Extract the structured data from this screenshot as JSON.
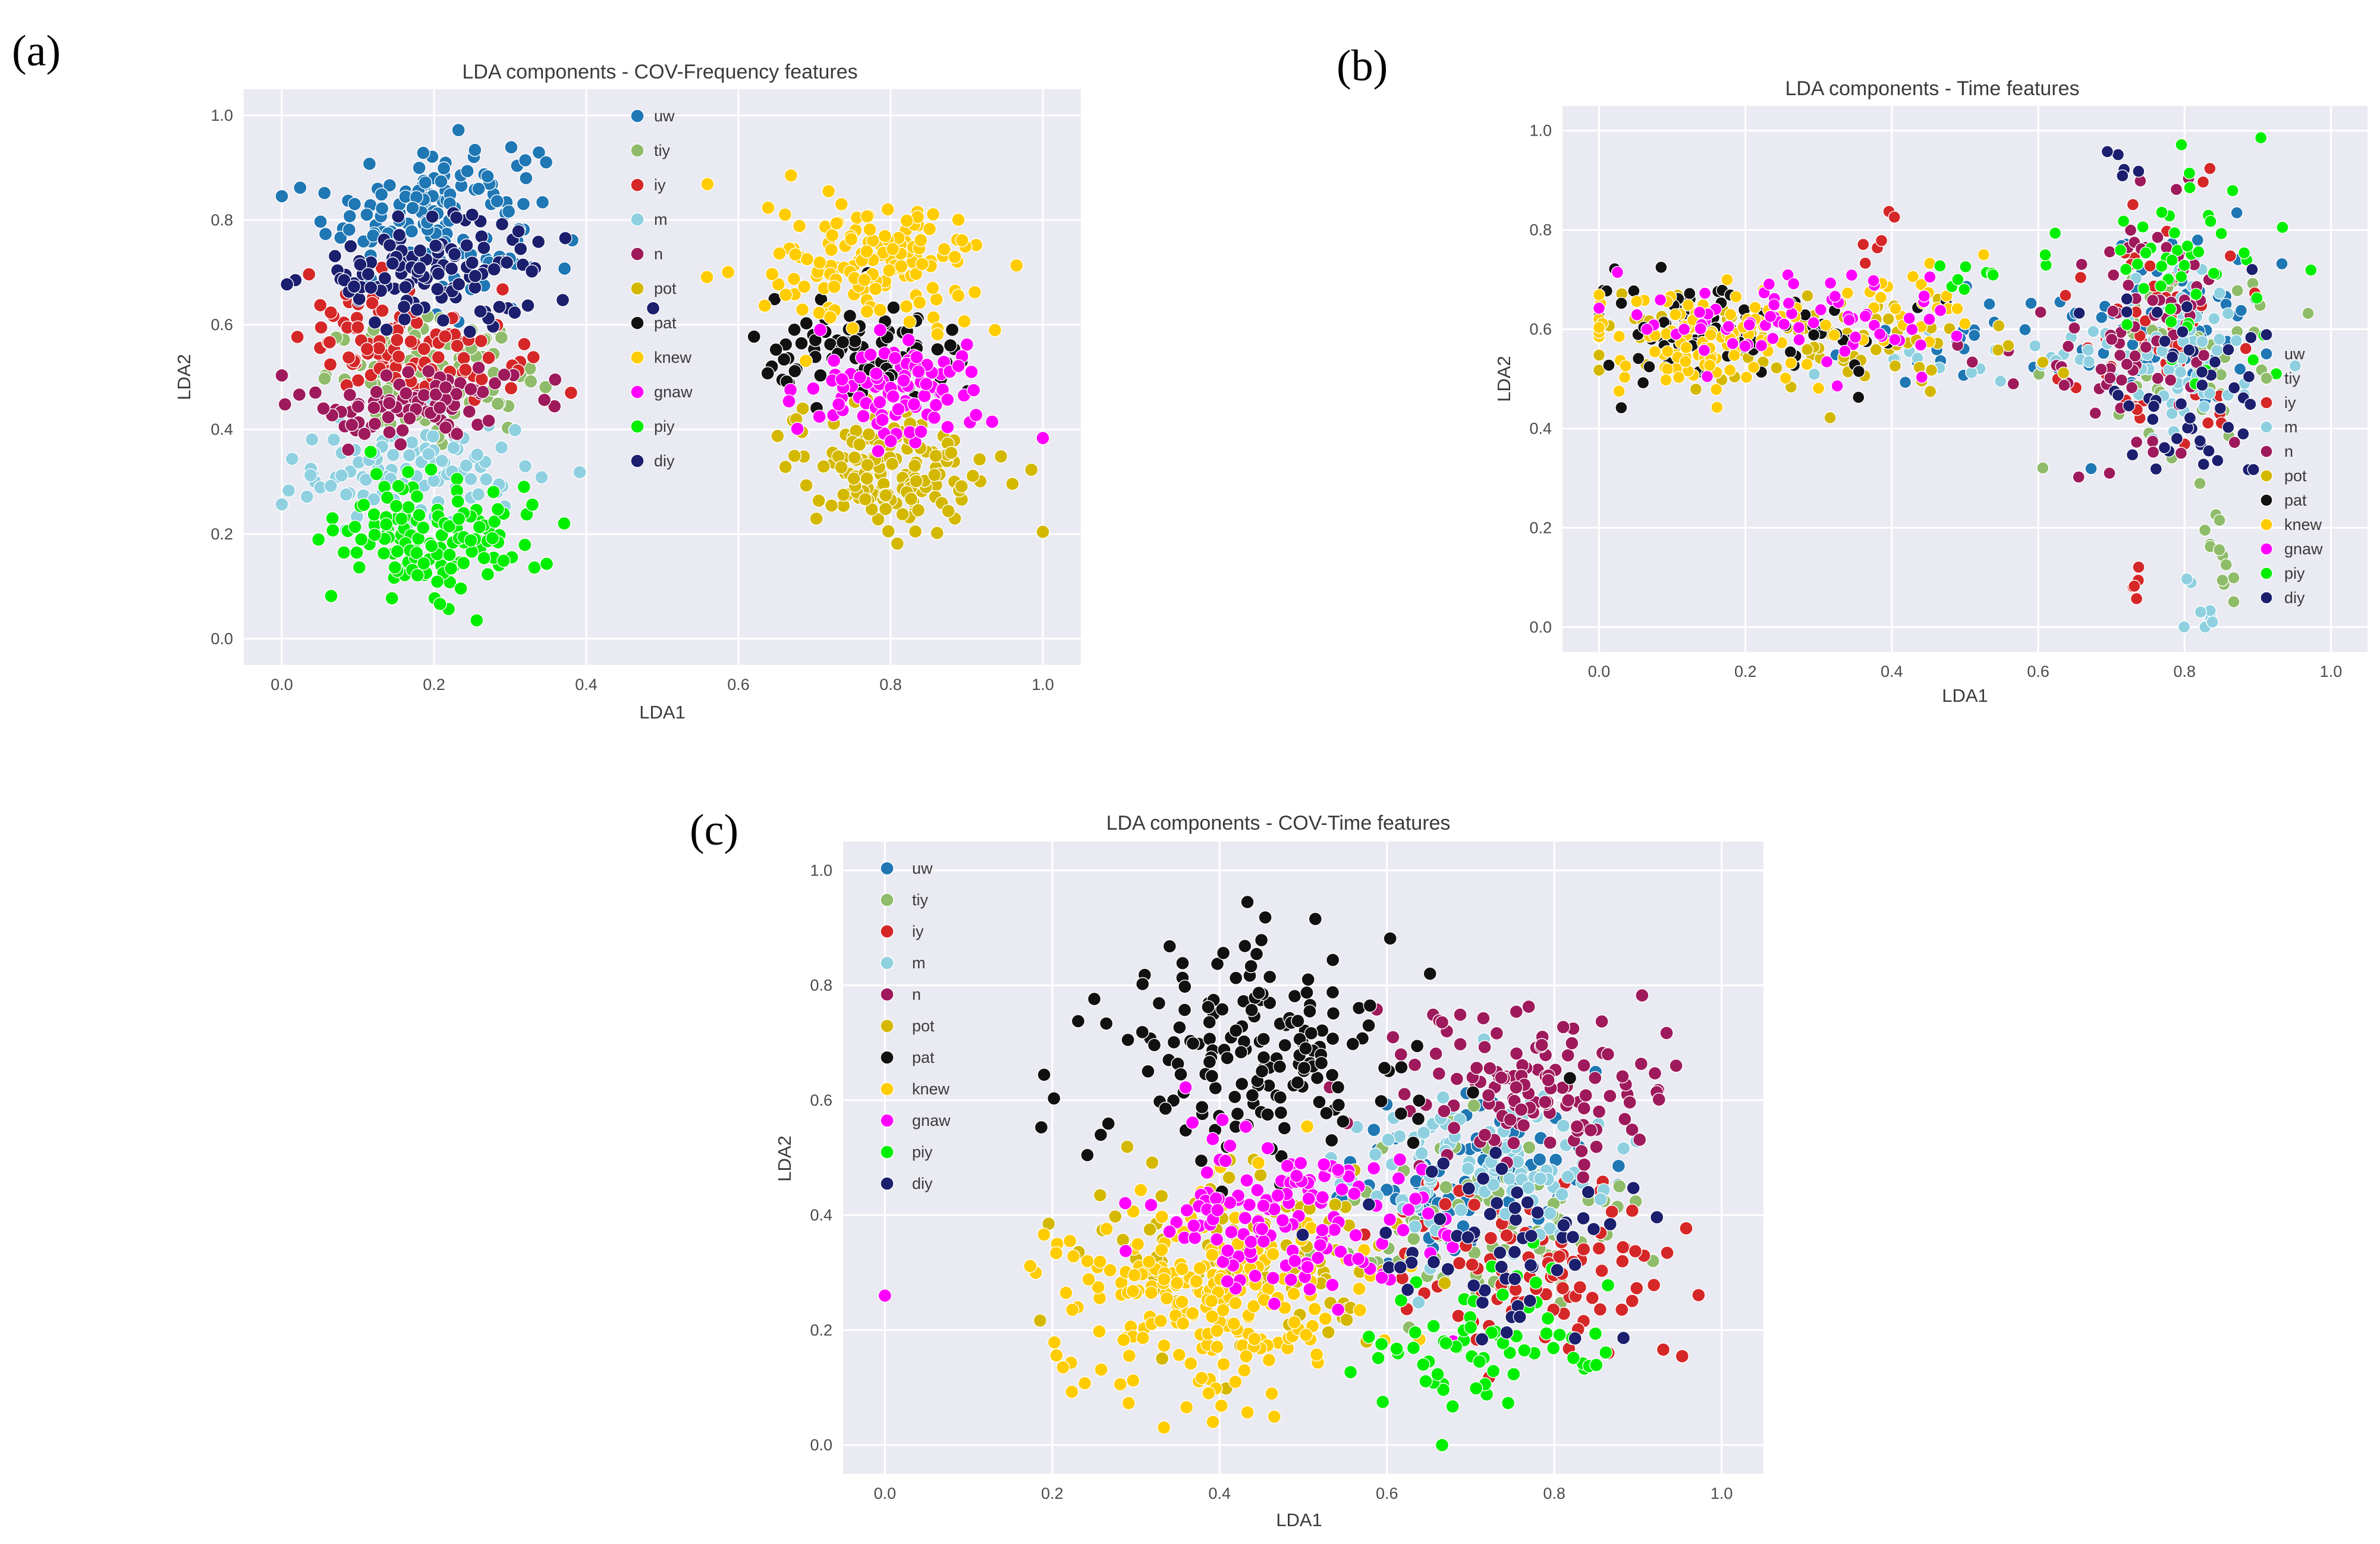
{
  "figure": {
    "panel_letters": [
      "(a)",
      "(b)",
      "(c)"
    ]
  },
  "chart_data": [
    {
      "panel": "(a)",
      "type": "scatter",
      "title": "LDA components - COV-Frequency features",
      "xlabel": "LDA1",
      "ylabel": "LDA2",
      "xlim": [
        -0.05,
        1.05
      ],
      "ylim": [
        -0.05,
        1.05
      ],
      "xticks": [
        0.0,
        0.2,
        0.4,
        0.6,
        0.8,
        1.0
      ],
      "yticks": [
        0.0,
        0.2,
        0.4,
        0.6,
        0.8,
        1.0
      ],
      "xtick_labels": [
        "0.0",
        "0.2",
        "0.4",
        "0.6",
        "0.8",
        "1.0"
      ],
      "ytick_labels": [
        "0.0",
        "0.2",
        "0.4",
        "0.6",
        "0.8",
        "1.0"
      ],
      "grid": true,
      "legend_position": "center",
      "series": [
        {
          "name": "uw",
          "color": "#1f77b4",
          "clusters": [
            {
              "cx": 0.2,
              "cy": 0.82,
              "sx": 0.07,
              "sy": 0.07,
              "n": 140
            }
          ]
        },
        {
          "name": "tiy",
          "color": "#8fbc6a",
          "clusters": [
            {
              "cx": 0.2,
              "cy": 0.5,
              "sx": 0.07,
              "sy": 0.05,
              "n": 90
            }
          ]
        },
        {
          "name": "iy",
          "color": "#d62728",
          "clusters": [
            {
              "cx": 0.17,
              "cy": 0.56,
              "sx": 0.07,
              "sy": 0.05,
              "n": 110
            }
          ]
        },
        {
          "name": "m",
          "color": "#8fd0e0",
          "clusters": [
            {
              "cx": 0.17,
              "cy": 0.32,
              "sx": 0.08,
              "sy": 0.05,
              "n": 100
            }
          ]
        },
        {
          "name": "n",
          "color": "#9e1a5c",
          "clusters": [
            {
              "cx": 0.17,
              "cy": 0.45,
              "sx": 0.07,
              "sy": 0.04,
              "n": 90
            }
          ]
        },
        {
          "name": "pot",
          "color": "#d4b800",
          "clusters": [
            {
              "cx": 0.8,
              "cy": 0.33,
              "sx": 0.07,
              "sy": 0.06,
              "n": 150
            }
          ]
        },
        {
          "name": "pat",
          "color": "#111111",
          "clusters": [
            {
              "cx": 0.77,
              "cy": 0.54,
              "sx": 0.07,
              "sy": 0.05,
              "n": 90
            }
          ]
        },
        {
          "name": "knew",
          "color": "#ffcc00",
          "clusters": [
            {
              "cx": 0.78,
              "cy": 0.71,
              "sx": 0.07,
              "sy": 0.06,
              "n": 150
            }
          ]
        },
        {
          "name": "gnaw",
          "color": "#ff00ff",
          "clusters": [
            {
              "cx": 0.81,
              "cy": 0.47,
              "sx": 0.06,
              "sy": 0.05,
              "n": 100
            }
          ]
        },
        {
          "name": "piy",
          "color": "#00ee00",
          "clusters": [
            {
              "cx": 0.2,
              "cy": 0.2,
              "sx": 0.07,
              "sy": 0.06,
              "n": 140
            }
          ]
        },
        {
          "name": "diy",
          "color": "#1b1f6e",
          "clusters": [
            {
              "cx": 0.2,
              "cy": 0.7,
              "sx": 0.08,
              "sy": 0.05,
              "n": 120
            }
          ]
        }
      ]
    },
    {
      "panel": "(b)",
      "type": "scatter",
      "title": "LDA components -  Time features",
      "xlabel": "LDA1",
      "ylabel": "LDA2",
      "xlim": [
        -0.05,
        1.05
      ],
      "ylim": [
        -0.05,
        1.05
      ],
      "xticks": [
        0.0,
        0.2,
        0.4,
        0.6,
        0.8,
        1.0
      ],
      "yticks": [
        0.0,
        0.2,
        0.4,
        0.6,
        0.8,
        1.0
      ],
      "xtick_labels": [
        "0.0",
        "0.2",
        "0.4",
        "0.6",
        "0.8",
        "1.0"
      ],
      "ytick_labels": [
        "0.0",
        "0.2",
        "0.4",
        "0.6",
        "0.8",
        "1.0"
      ],
      "grid": true,
      "legend_position": "right",
      "series": [
        {
          "name": "uw",
          "color": "#1f77b4",
          "clusters": [
            {
              "cx": 0.78,
              "cy": 0.62,
              "sx": 0.06,
              "sy": 0.1,
              "n": 70
            },
            {
              "cx": 0.5,
              "cy": 0.58,
              "sx": 0.1,
              "sy": 0.05,
              "n": 20
            }
          ]
        },
        {
          "name": "tiy",
          "color": "#8fbc6a",
          "clusters": [
            {
              "cx": 0.8,
              "cy": 0.55,
              "sx": 0.06,
              "sy": 0.1,
              "n": 60
            },
            {
              "cx": 0.85,
              "cy": 0.15,
              "sx": 0.01,
              "sy": 0.06,
              "n": 12
            }
          ]
        },
        {
          "name": "iy",
          "color": "#d62728",
          "clusters": [
            {
              "cx": 0.76,
              "cy": 0.6,
              "sx": 0.06,
              "sy": 0.12,
              "n": 60
            },
            {
              "cx": 0.39,
              "cy": 0.78,
              "sx": 0.02,
              "sy": 0.03,
              "n": 6
            },
            {
              "cx": 0.73,
              "cy": 0.1,
              "sx": 0.01,
              "sy": 0.03,
              "n": 5
            }
          ]
        },
        {
          "name": "m",
          "color": "#8fd0e0",
          "clusters": [
            {
              "cx": 0.79,
              "cy": 0.55,
              "sx": 0.06,
              "sy": 0.1,
              "n": 60
            },
            {
              "cx": 0.55,
              "cy": 0.55,
              "sx": 0.12,
              "sy": 0.03,
              "n": 25
            },
            {
              "cx": 0.83,
              "cy": 0.05,
              "sx": 0.01,
              "sy": 0.05,
              "n": 8
            }
          ]
        },
        {
          "name": "n",
          "color": "#9e1a5c",
          "clusters": [
            {
              "cx": 0.75,
              "cy": 0.6,
              "sx": 0.06,
              "sy": 0.12,
              "n": 70
            },
            {
              "cx": 0.64,
              "cy": 0.54,
              "sx": 0.08,
              "sy": 0.03,
              "n": 15
            }
          ]
        },
        {
          "name": "pot",
          "color": "#d4b800",
          "clusters": [
            {
              "cx": 0.25,
              "cy": 0.58,
              "sx": 0.15,
              "sy": 0.05,
              "n": 90
            }
          ]
        },
        {
          "name": "pat",
          "color": "#111111",
          "clusters": [
            {
              "cx": 0.1,
              "cy": 0.6,
              "sx": 0.06,
              "sy": 0.05,
              "n": 70
            },
            {
              "cx": 0.3,
              "cy": 0.58,
              "sx": 0.08,
              "sy": 0.04,
              "n": 30
            }
          ]
        },
        {
          "name": "knew",
          "color": "#ffcc00",
          "clusters": [
            {
              "cx": 0.15,
              "cy": 0.58,
              "sx": 0.09,
              "sy": 0.05,
              "n": 110
            },
            {
              "cx": 0.42,
              "cy": 0.66,
              "sx": 0.06,
              "sy": 0.04,
              "n": 20
            }
          ]
        },
        {
          "name": "gnaw",
          "color": "#ff00ff",
          "clusters": [
            {
              "cx": 0.22,
              "cy": 0.62,
              "sx": 0.1,
              "sy": 0.05,
              "n": 60
            },
            {
              "cx": 0.4,
              "cy": 0.65,
              "sx": 0.06,
              "sy": 0.04,
              "n": 15
            }
          ]
        },
        {
          "name": "piy",
          "color": "#00ee00",
          "clusters": [
            {
              "cx": 0.82,
              "cy": 0.7,
              "sx": 0.06,
              "sy": 0.1,
              "n": 50
            },
            {
              "cx": 0.52,
              "cy": 0.72,
              "sx": 0.06,
              "sy": 0.03,
              "n": 10
            }
          ]
        },
        {
          "name": "diy",
          "color": "#1b1f6e",
          "clusters": [
            {
              "cx": 0.8,
              "cy": 0.45,
              "sx": 0.06,
              "sy": 0.12,
              "n": 50
            },
            {
              "cx": 0.72,
              "cy": 0.95,
              "sx": 0.02,
              "sy": 0.03,
              "n": 5
            }
          ]
        }
      ]
    },
    {
      "panel": "(c)",
      "type": "scatter",
      "title": "LDA components - COV-Time features",
      "xlabel": "LDA1",
      "ylabel": "LDA2",
      "xlim": [
        -0.05,
        1.05
      ],
      "ylim": [
        -0.05,
        1.05
      ],
      "xticks": [
        0.0,
        0.2,
        0.4,
        0.6,
        0.8,
        1.0
      ],
      "yticks": [
        0.0,
        0.2,
        0.4,
        0.6,
        0.8,
        1.0
      ],
      "xtick_labels": [
        "0.0",
        "0.2",
        "0.4",
        "0.6",
        "0.8",
        "1.0"
      ],
      "ytick_labels": [
        "0.0",
        "0.2",
        "0.4",
        "0.6",
        "0.8",
        "1.0"
      ],
      "grid": true,
      "legend_position": "top-left",
      "series": [
        {
          "name": "uw",
          "color": "#1f77b4",
          "clusters": [
            {
              "cx": 0.7,
              "cy": 0.47,
              "sx": 0.08,
              "sy": 0.07,
              "n": 90
            }
          ]
        },
        {
          "name": "tiy",
          "color": "#8fbc6a",
          "clusters": [
            {
              "cx": 0.72,
              "cy": 0.38,
              "sx": 0.09,
              "sy": 0.08,
              "n": 80
            }
          ]
        },
        {
          "name": "iy",
          "color": "#d62728",
          "clusters": [
            {
              "cx": 0.78,
              "cy": 0.3,
              "sx": 0.09,
              "sy": 0.08,
              "n": 100
            }
          ]
        },
        {
          "name": "m",
          "color": "#8fd0e0",
          "clusters": [
            {
              "cx": 0.72,
              "cy": 0.48,
              "sx": 0.08,
              "sy": 0.07,
              "n": 110
            }
          ]
        },
        {
          "name": "n",
          "color": "#9e1a5c",
          "clusters": [
            {
              "cx": 0.76,
              "cy": 0.62,
              "sx": 0.08,
              "sy": 0.07,
              "n": 130
            }
          ]
        },
        {
          "name": "pot",
          "color": "#d4b800",
          "clusters": [
            {
              "cx": 0.42,
              "cy": 0.34,
              "sx": 0.1,
              "sy": 0.07,
              "n": 120
            }
          ]
        },
        {
          "name": "pat",
          "color": "#111111",
          "clusters": [
            {
              "cx": 0.45,
              "cy": 0.68,
              "sx": 0.09,
              "sy": 0.1,
              "n": 170
            },
            {
              "cx": 0.19,
              "cy": 0.63,
              "sx": 0.02,
              "sy": 0.05,
              "n": 3
            }
          ]
        },
        {
          "name": "knew",
          "color": "#ffcc00",
          "clusters": [
            {
              "cx": 0.38,
              "cy": 0.26,
              "sx": 0.09,
              "sy": 0.09,
              "n": 220
            }
          ]
        },
        {
          "name": "gnaw",
          "color": "#ff00ff",
          "clusters": [
            {
              "cx": 0.48,
              "cy": 0.4,
              "sx": 0.09,
              "sy": 0.07,
              "n": 150
            },
            {
              "cx": 0.0,
              "cy": 0.26,
              "sx": 0.0,
              "sy": 0.0,
              "n": 1
            }
          ]
        },
        {
          "name": "piy",
          "color": "#00ee00",
          "clusters": [
            {
              "cx": 0.72,
              "cy": 0.18,
              "sx": 0.07,
              "sy": 0.07,
              "n": 70
            }
          ]
        },
        {
          "name": "diy",
          "color": "#1b1f6e",
          "clusters": [
            {
              "cx": 0.74,
              "cy": 0.35,
              "sx": 0.08,
              "sy": 0.08,
              "n": 60
            }
          ]
        }
      ]
    }
  ]
}
